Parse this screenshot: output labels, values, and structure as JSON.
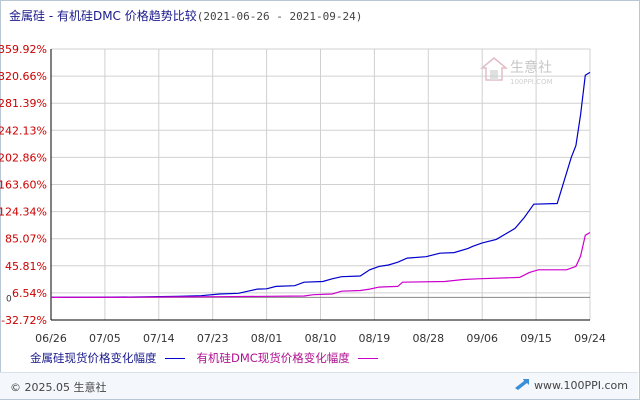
{
  "title": {
    "main": "金属硅 - 有机硅DMC 价格趋势比较",
    "date_range": "(2021-06-26 - 2021-09-24)"
  },
  "watermark": {
    "cn": "生意社",
    "en": "100PPI.COM"
  },
  "legend": [
    {
      "name": "金属硅现货价格变化幅度",
      "color": "#0000cc"
    },
    {
      "name": "有机硅DMC现货价格变化幅度",
      "color": "#cc00cc"
    }
  ],
  "footer": {
    "copyright": "© 2025.05 生意社",
    "site": "www.100PPI.com"
  },
  "colors": {
    "axis_label": "#cc0000",
    "grid": "#d0d0d0",
    "axis": "#000000"
  },
  "chart_data": {
    "type": "line",
    "title": "金属硅 - 有机硅DMC 价格趋势比较",
    "xlabel": "",
    "ylabel": "",
    "x_tick_labels": [
      "06/26",
      "07/05",
      "07/14",
      "07/23",
      "08/01",
      "08/10",
      "08/19",
      "08/28",
      "09/06",
      "09/15",
      "09/24"
    ],
    "y_tick_labels": [
      "359.92%",
      "320.66%",
      "281.39%",
      "242.13%",
      "202.86%",
      "163.60%",
      "124.34%",
      "85.07%",
      "45.81%",
      "6.54%",
      "-32.72%"
    ],
    "y_ticks": [
      359.92,
      320.66,
      281.39,
      242.13,
      202.86,
      163.6,
      124.34,
      85.07,
      45.81,
      6.54,
      -32.72
    ],
    "ylim": [
      -32.72,
      359.92
    ],
    "xlim_days": [
      0,
      90
    ],
    "baseline_label": "0",
    "grid": true,
    "series": [
      {
        "name": "金属硅现货价格变化幅度",
        "color": "#0000cc",
        "points": [
          [
            0,
            0
          ],
          [
            9,
            0.3
          ],
          [
            18,
            0.6
          ],
          [
            27,
            1.5
          ],
          [
            32,
            2.5
          ],
          [
            36,
            5
          ],
          [
            40,
            6
          ],
          [
            42,
            9
          ],
          [
            44,
            12
          ],
          [
            46,
            12.5
          ],
          [
            48,
            16
          ],
          [
            52,
            17
          ],
          [
            54,
            22
          ],
          [
            58,
            23
          ],
          [
            60,
            27
          ],
          [
            62,
            30
          ],
          [
            66,
            31
          ],
          [
            68,
            40
          ],
          [
            70,
            45
          ],
          [
            72,
            47
          ],
          [
            74,
            51
          ],
          [
            76,
            57
          ],
          [
            80,
            59
          ],
          [
            83,
            64
          ],
          [
            86,
            65
          ],
          [
            89,
            71
          ],
          [
            90,
            74
          ],
          [
            92,
            79
          ],
          [
            95,
            84
          ],
          [
            99,
            100
          ],
          [
            101,
            116
          ],
          [
            103,
            135
          ],
          [
            108,
            136
          ],
          [
            111,
            203
          ],
          [
            112,
            220
          ],
          [
            113,
            265
          ],
          [
            114,
            322
          ],
          [
            115,
            326
          ]
        ]
      },
      {
        "name": "有机硅DMC现货价格变化幅度",
        "color": "#cc00cc",
        "points": [
          [
            0,
            0
          ],
          [
            18,
            0.3
          ],
          [
            27,
            0.8
          ],
          [
            36,
            1
          ],
          [
            54,
            2
          ],
          [
            56,
            4
          ],
          [
            60,
            5
          ],
          [
            62,
            9
          ],
          [
            66,
            10
          ],
          [
            68,
            12
          ],
          [
            70,
            15
          ],
          [
            74,
            16
          ],
          [
            75,
            22
          ],
          [
            84,
            23
          ],
          [
            88,
            26
          ],
          [
            91,
            27
          ],
          [
            100,
            29
          ],
          [
            102,
            36
          ],
          [
            104,
            40
          ],
          [
            110,
            40
          ],
          [
            112,
            45
          ],
          [
            113,
            60
          ],
          [
            114,
            90
          ],
          [
            115,
            94
          ]
        ]
      }
    ]
  }
}
